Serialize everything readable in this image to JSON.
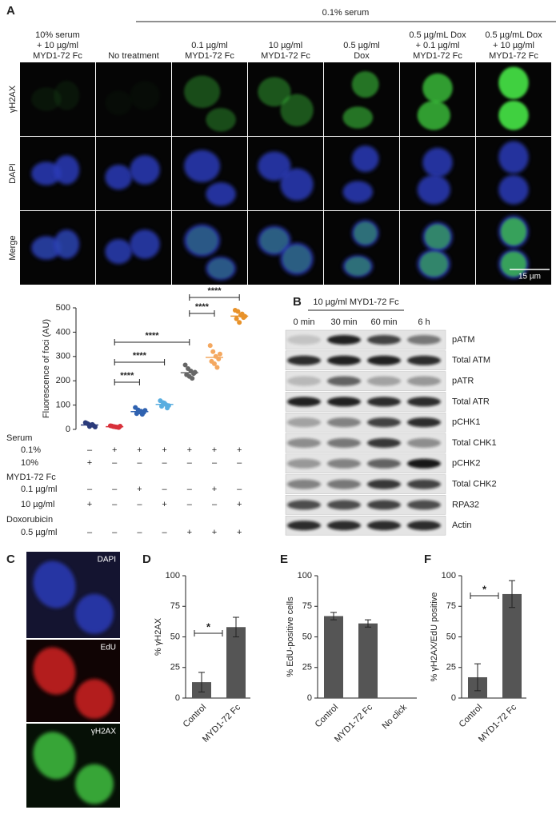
{
  "panel_labels": [
    "A",
    "B",
    "C",
    "D",
    "E",
    "F"
  ],
  "panel_a": {
    "group_header": "0.1% serum",
    "columns": [
      [
        "10% serum",
        "+ 10 µg/ml",
        "MYD1-72 Fc"
      ],
      [
        "No treatment"
      ],
      [
        "0.1 µg/ml",
        "MYD1-72 Fc"
      ],
      [
        "10 µg/ml",
        "MYD1-72 Fc"
      ],
      [
        "0.5 µg/ml",
        "Dox"
      ],
      [
        "0.5 µg/mL Dox",
        "+ 0.1 µg/ml",
        "MYD1-72 Fc"
      ],
      [
        "0.5 µg/mL Dox",
        "+ 10 µg/ml",
        "MYD1-72 Fc"
      ]
    ],
    "rows": [
      "γH2AX",
      "DAPI",
      "Merge"
    ],
    "scale_bar": "15 µm"
  },
  "panel_b": {
    "treatment": "10 µg/ml MYD1-72 Fc",
    "lanes": [
      "0 min",
      "30 min",
      "60 min",
      "6 h"
    ],
    "proteins": [
      "pATM",
      "Total ATM",
      "pATR",
      "Total ATR",
      "pCHK1",
      "Total CHK1",
      "pCHK2",
      "Total CHK2",
      "RPA32",
      "Actin"
    ]
  },
  "panel_c": {
    "channels": [
      "DAPI",
      "EdU",
      "γH2AX"
    ]
  },
  "chart_data": [
    {
      "type": "dotplot",
      "ylabel": "Fluorescence of foci (AU)",
      "ylim": [
        0,
        500
      ],
      "yticks": [
        0,
        100,
        200,
        300,
        400,
        500
      ],
      "groups": [
        {
          "color": "#2a3a7a",
          "values": [
            28,
            22,
            18,
            15,
            25,
            12,
            20,
            10
          ],
          "mean": 18
        },
        {
          "color": "#d8303a",
          "values": [
            15,
            12,
            10,
            8,
            14,
            11,
            9,
            13
          ],
          "mean": 11
        },
        {
          "color": "#2f62b0",
          "values": [
            90,
            80,
            75,
            70,
            65,
            72,
            62,
            78
          ],
          "mean": 73
        },
        {
          "color": "#5aaee0",
          "values": [
            118,
            110,
            102,
            98,
            95,
            108,
            88
          ],
          "mean": 103
        },
        {
          "color": "#666666",
          "values": [
            265,
            250,
            240,
            230,
            225,
            218,
            210,
            235
          ],
          "mean": 233
        },
        {
          "color": "#f4a860",
          "values": [
            345,
            320,
            300,
            290,
            280,
            270,
            255,
            310
          ],
          "mean": 296
        },
        {
          "color": "#e8922a",
          "values": [
            490,
            485,
            470,
            460,
            455,
            440,
            475,
            465
          ],
          "mean": 466
        }
      ],
      "significance": [
        "****",
        "****",
        "****",
        "****",
        "****"
      ],
      "conditions": [
        {
          "header": "Serum",
          "rows": [
            {
              "label": "0.1%",
              "marks": [
                "–",
                "+",
                "+",
                "+",
                "+",
                "+",
                "+"
              ]
            },
            {
              "label": "10%",
              "marks": [
                "+",
                "–",
                "–",
                "–",
                "–",
                "–",
                "–"
              ]
            }
          ]
        },
        {
          "header": "MYD1-72 Fc",
          "rows": [
            {
              "label": "0.1 µg/ml",
              "marks": [
                "–",
                "–",
                "+",
                "–",
                "–",
                "+",
                "–"
              ]
            },
            {
              "label": "10 µg/ml",
              "marks": [
                "+",
                "–",
                "–",
                "+",
                "–",
                "–",
                "+"
              ]
            }
          ]
        },
        {
          "header": "Doxorubicin",
          "rows": [
            {
              "label": "0.5 µg/ml",
              "marks": [
                "–",
                "–",
                "–",
                "–",
                "+",
                "+",
                "+"
              ]
            }
          ]
        }
      ]
    },
    {
      "type": "bar",
      "ylabel": "% γH2AX",
      "categories": [
        "Control",
        "MYD1-72 Fc"
      ],
      "values": [
        13,
        58
      ],
      "errors": [
        8,
        8
      ],
      "color": "#555555",
      "ylim": [
        0,
        100
      ],
      "yticks": [
        0,
        25,
        50,
        75,
        100
      ],
      "annotation": "*"
    },
    {
      "type": "bar",
      "ylabel": "% EdU-positive cells",
      "categories": [
        "Control",
        "MYD1-72 Fc",
        "No click"
      ],
      "values": [
        67,
        61,
        0
      ],
      "errors": [
        3,
        3,
        null
      ],
      "color": "#555555",
      "ylim": [
        0,
        100
      ],
      "yticks": [
        0,
        25,
        50,
        75,
        100
      ]
    },
    {
      "type": "bar",
      "ylabel": "% γH2AX/EdU positive",
      "categories": [
        "Control",
        "MYD1-72 Fc"
      ],
      "values": [
        17,
        85
      ],
      "errors": [
        11,
        11
      ],
      "color": "#555555",
      "ylim": [
        0,
        100
      ],
      "yticks": [
        0,
        25,
        50,
        75,
        100
      ],
      "annotation": "*"
    }
  ]
}
